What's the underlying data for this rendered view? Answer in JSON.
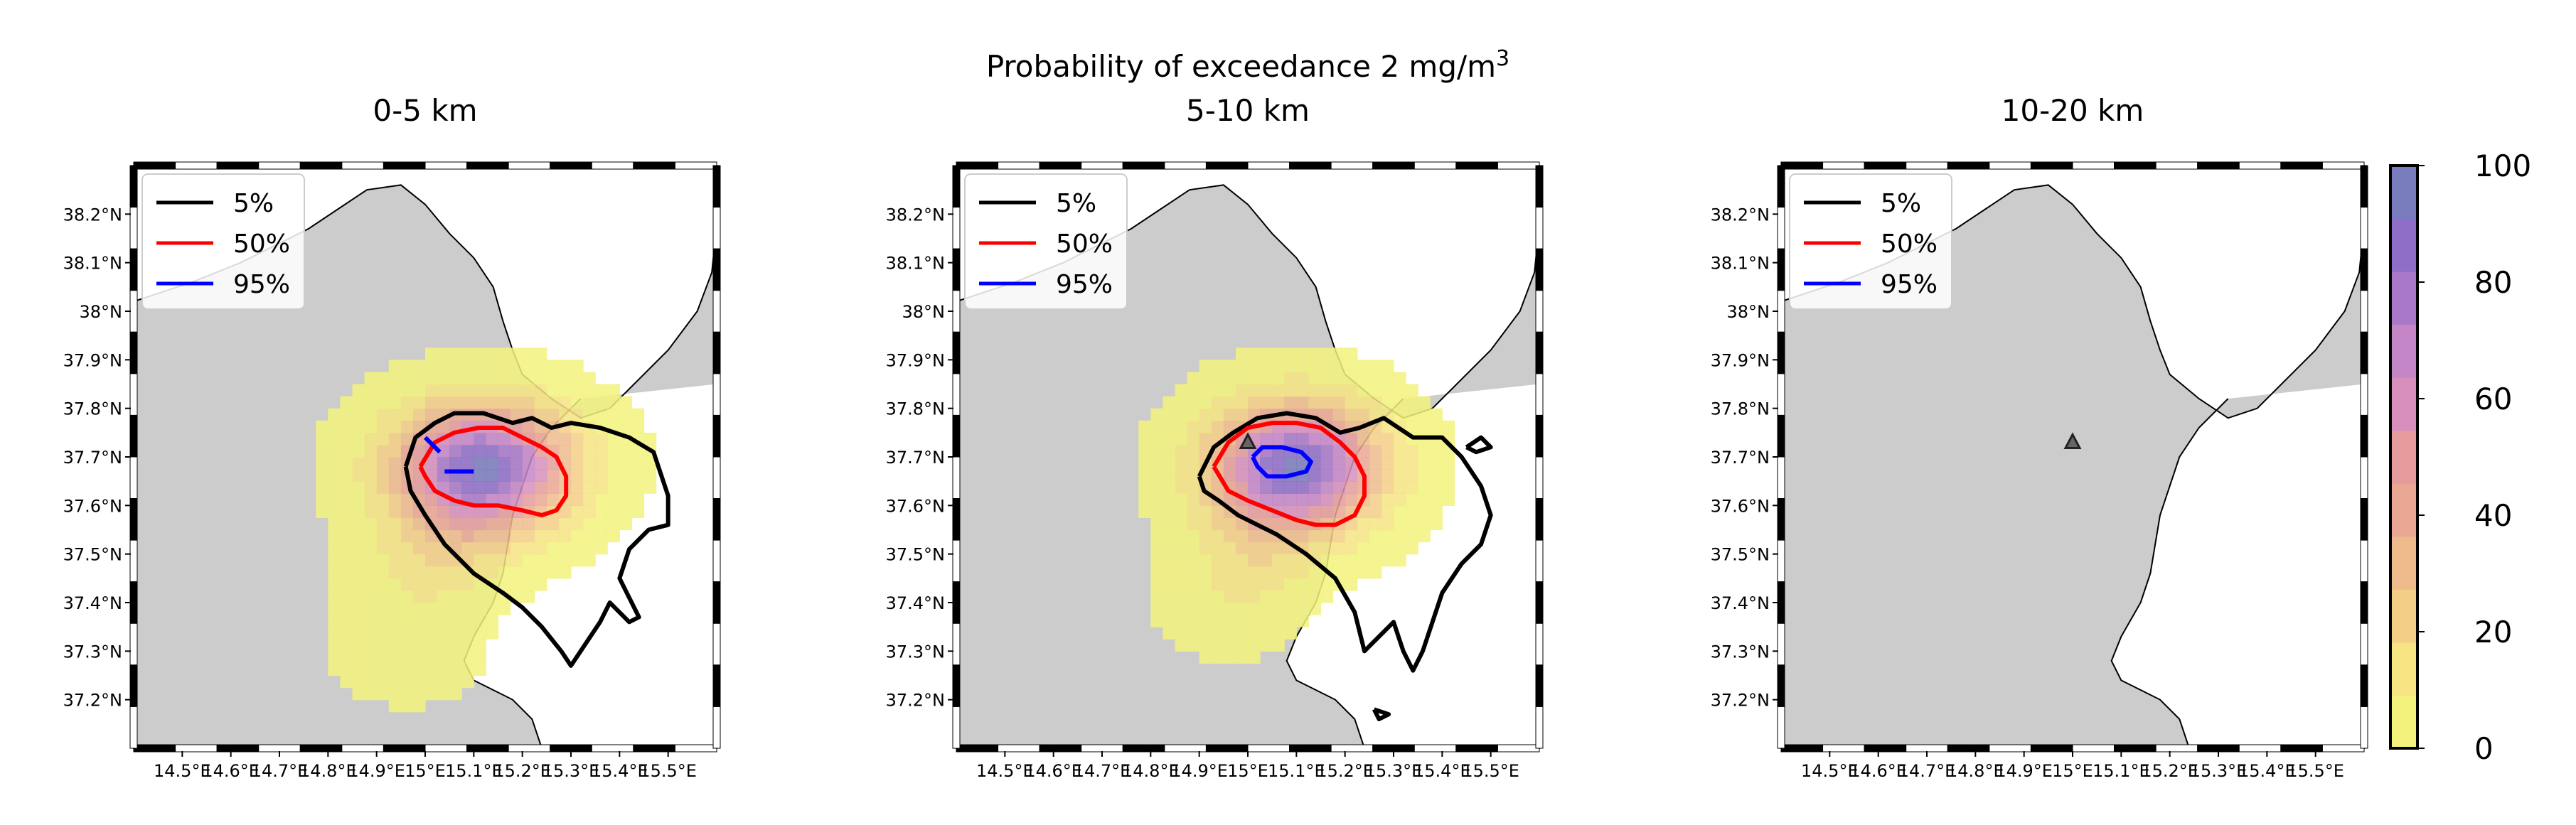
{
  "chart_data": {
    "type": "heatmap",
    "suptitle": "Probability of exceedance 2 mg/m",
    "suptitle_sup": "3",
    "panels": [
      {
        "title": "0-5 km",
        "contours": [
          {
            "level": "5%",
            "color": "#000000",
            "lon": [
              14.96,
              14.98,
              15.02,
              15.06,
              15.12,
              15.18,
              15.22,
              15.26,
              15.3,
              15.36,
              15.42,
              15.47,
              15.5,
              15.5,
              15.46,
              15.42,
              15.4,
              15.42,
              15.44,
              15.42,
              15.38,
              15.36,
              15.34,
              15.32,
              15.3,
              15.28,
              15.24,
              15.2,
              15.16,
              15.1,
              15.04,
              15.0,
              14.97,
              14.96
            ],
            "lat": [
              37.68,
              37.74,
              37.77,
              37.79,
              37.79,
              37.77,
              37.78,
              37.76,
              37.77,
              37.76,
              37.74,
              37.71,
              37.62,
              37.56,
              37.55,
              37.51,
              37.45,
              37.41,
              37.37,
              37.36,
              37.4,
              37.36,
              37.33,
              37.3,
              37.27,
              37.3,
              37.35,
              37.39,
              37.42,
              37.46,
              37.52,
              37.58,
              37.63,
              37.68
            ]
          },
          {
            "level": "50%",
            "color": "#ff0000",
            "lon": [
              14.99,
              15.02,
              15.06,
              15.11,
              15.16,
              15.2,
              15.24,
              15.27,
              15.29,
              15.29,
              15.27,
              15.24,
              15.2,
              15.15,
              15.1,
              15.06,
              15.02,
              15.0,
              14.99
            ],
            "lat": [
              37.68,
              37.73,
              37.75,
              37.76,
              37.76,
              37.74,
              37.72,
              37.7,
              37.66,
              37.62,
              37.59,
              37.58,
              37.59,
              37.6,
              37.6,
              37.61,
              37.63,
              37.66,
              37.68
            ]
          },
          {
            "level": "95%",
            "color": "#0000ff",
            "lon": [
              15.0,
              15.03
            ],
            "lat": [
              37.74,
              37.71
            ]
          },
          {
            "level": "95%",
            "color": "#0000ff",
            "lon": [
              15.04,
              15.1
            ],
            "lat": [
              37.67,
              37.67
            ]
          }
        ],
        "peak": {
          "lon": 15.12,
          "lat": 37.68,
          "max": 92,
          "rlon": 0.17,
          "rlat": 0.12,
          "tail_lon": [
            15.06,
            15.0,
            14.96
          ],
          "tail_lat": [
            37.55,
            37.45,
            37.3
          ],
          "tail_rlon": 0.13,
          "tail_rlat": 0.09,
          "tail_max": [
            14,
            8,
            6
          ]
        },
        "vent": false
      },
      {
        "title": "5-10 km",
        "contours": [
          {
            "level": "5%",
            "color": "#000000",
            "lon": [
              14.9,
              14.93,
              14.97,
              15.02,
              15.08,
              15.14,
              15.19,
              15.23,
              15.28,
              15.34,
              15.4,
              15.44,
              15.48,
              15.5,
              15.48,
              15.44,
              15.4,
              15.38,
              15.36,
              15.34,
              15.32,
              15.3,
              15.28,
              15.26,
              15.24,
              15.22,
              15.18,
              15.12,
              15.06,
              15.02,
              14.98,
              14.94,
              14.91,
              14.9
            ],
            "lat": [
              37.66,
              37.72,
              37.75,
              37.78,
              37.79,
              37.78,
              37.75,
              37.76,
              37.78,
              37.74,
              37.74,
              37.7,
              37.64,
              37.58,
              37.52,
              37.48,
              37.42,
              37.36,
              37.3,
              37.26,
              37.3,
              37.36,
              37.34,
              37.32,
              37.3,
              37.38,
              37.45,
              37.5,
              37.54,
              37.56,
              37.58,
              37.61,
              37.63,
              37.66
            ]
          },
          {
            "level": "5%",
            "color": "#000000",
            "lon": [
              15.45,
              15.48,
              15.5,
              15.47,
              15.45
            ],
            "lat": [
              37.72,
              37.74,
              37.72,
              37.71,
              37.72
            ]
          },
          {
            "level": "5%",
            "color": "#000000",
            "lon": [
              15.26,
              15.29,
              15.27,
              15.26
            ],
            "lat": [
              37.18,
              37.17,
              37.16,
              37.18
            ]
          },
          {
            "level": "50%",
            "color": "#ff0000",
            "lon": [
              14.93,
              14.96,
              15.0,
              15.05,
              15.1,
              15.15,
              15.19,
              15.22,
              15.24,
              15.24,
              15.22,
              15.18,
              15.14,
              15.1,
              15.05,
              15.0,
              14.96,
              14.93
            ],
            "lat": [
              37.68,
              37.73,
              37.76,
              37.77,
              37.77,
              37.76,
              37.73,
              37.7,
              37.66,
              37.62,
              37.58,
              37.56,
              37.56,
              37.57,
              37.59,
              37.61,
              37.63,
              37.68
            ]
          },
          {
            "level": "95%",
            "color": "#0000ff",
            "lon": [
              15.01,
              15.03,
              15.07,
              15.11,
              15.13,
              15.12,
              15.08,
              15.04,
              15.02,
              15.01
            ],
            "lat": [
              37.7,
              37.72,
              37.72,
              37.71,
              37.69,
              37.67,
              37.66,
              37.66,
              37.68,
              37.7
            ]
          }
        ],
        "peak": {
          "lon": 15.1,
          "lat": 37.68,
          "max": 95,
          "rlon": 0.16,
          "rlat": 0.12,
          "tail_lon": [
            15.02,
            14.96
          ],
          "tail_lat": [
            37.52,
            37.4
          ],
          "tail_rlon": 0.12,
          "tail_rlat": 0.1,
          "tail_max": [
            12,
            6
          ]
        },
        "vent": true
      },
      {
        "title": "10-20 km",
        "contours": [],
        "peak": null,
        "vent": true
      }
    ],
    "legend": [
      "5%",
      "50%",
      "95%"
    ],
    "legend_colors": [
      "#000000",
      "#ff0000",
      "#0000ff"
    ],
    "xlim": [
      14.4,
      15.6
    ],
    "ylim": [
      37.1,
      38.3
    ],
    "x_ticks": [
      14.5,
      14.6,
      14.7,
      14.8,
      14.9,
      15.0,
      15.1,
      15.2,
      15.3,
      15.4,
      15.5
    ],
    "x_tick_labels": [
      "14.5°E",
      "14.6°E",
      "14.7°E",
      "14.8°E",
      "14.9°E",
      "15°E",
      "15.1°E",
      "15.2°E",
      "15.3°E",
      "15.4°E",
      "15.5°E"
    ],
    "y_ticks": [
      37.2,
      37.3,
      37.4,
      37.5,
      37.6,
      37.7,
      37.8,
      37.9,
      38.0,
      38.1,
      38.2
    ],
    "y_tick_labels": [
      "37.2°N",
      "37.3°N",
      "37.4°N",
      "37.5°N",
      "37.6°N",
      "37.7°N",
      "37.8°N",
      "37.9°N",
      "38°N",
      "38.1°N",
      "38.2°N"
    ],
    "vent_location": {
      "lon": 15.0,
      "lat": 37.73
    },
    "colorbar": {
      "min": 0,
      "max": 100,
      "ticks": [
        0,
        20,
        40,
        60,
        80,
        100
      ],
      "colors": [
        "#f2f27c",
        "#f5e481",
        "#f3cf86",
        "#efbb8c",
        "#eaa793",
        "#e59b9c",
        "#d78fbd",
        "#c586c8",
        "#a978c8",
        "#8f6ec7",
        "#7a7dbd"
      ]
    },
    "coastline": {
      "lon": [
        14.4,
        14.52,
        14.62,
        14.7,
        14.76,
        14.82,
        14.88,
        14.95,
        15.0,
        15.05,
        15.1,
        15.14,
        15.16,
        15.18,
        15.2,
        15.26,
        15.32,
        15.38,
        15.44,
        15.5,
        15.56,
        15.59,
        15.6
      ],
      "lat": [
        38.02,
        38.06,
        38.1,
        38.14,
        38.17,
        38.21,
        38.25,
        38.26,
        38.22,
        38.16,
        38.11,
        38.05,
        37.98,
        37.92,
        37.87,
        37.82,
        37.78,
        37.8,
        37.86,
        37.92,
        38.0,
        38.08,
        38.18
      ]
    },
    "land_color": "#cccccc"
  }
}
